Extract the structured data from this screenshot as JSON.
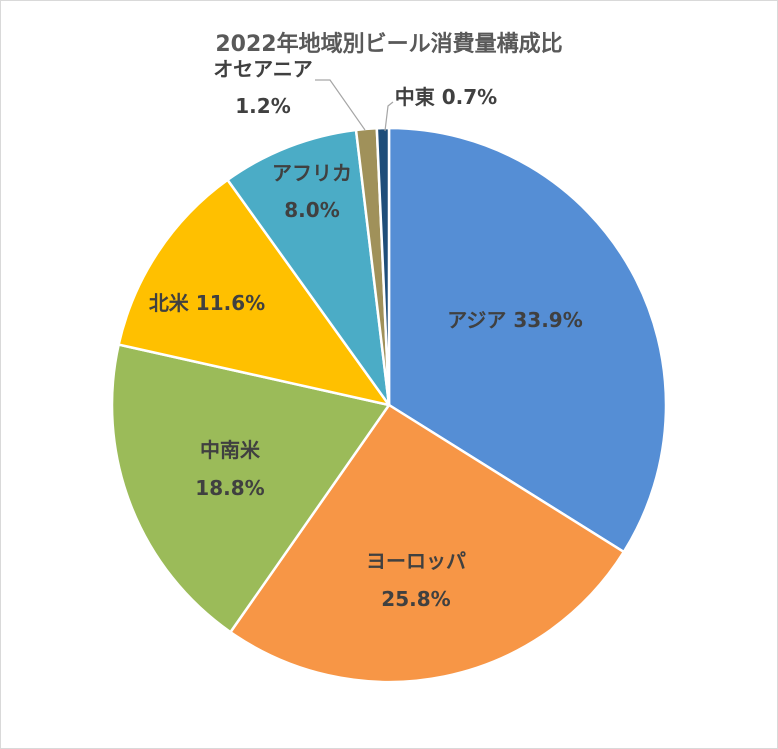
{
  "chart_data": {
    "type": "pie",
    "title": "2022年地域別ビール消費量構成比",
    "slices": [
      {
        "name": "アジア",
        "value": 33.9,
        "label": "33.9%",
        "color": "#558ED5"
      },
      {
        "name": "ヨーロッパ",
        "value": 25.8,
        "label": "25.8%",
        "color": "#F79646"
      },
      {
        "name": "中南米",
        "value": 18.8,
        "label": "18.8%",
        "color": "#9BBB59"
      },
      {
        "name": "北米",
        "value": 11.6,
        "label": "11.6%",
        "color": "#FFC000"
      },
      {
        "name": "アフリカ",
        "value": 8.0,
        "label": "8.0%",
        "color": "#4BACC6"
      },
      {
        "name": "オセアニア",
        "value": 1.2,
        "label": "1.2%",
        "color": "#A0915A"
      },
      {
        "name": "中東",
        "value": 0.7,
        "label": "0.7%",
        "color": "#1F4E79"
      }
    ],
    "start": "12 o'clock",
    "direction": "clockwise",
    "legend": "none"
  }
}
